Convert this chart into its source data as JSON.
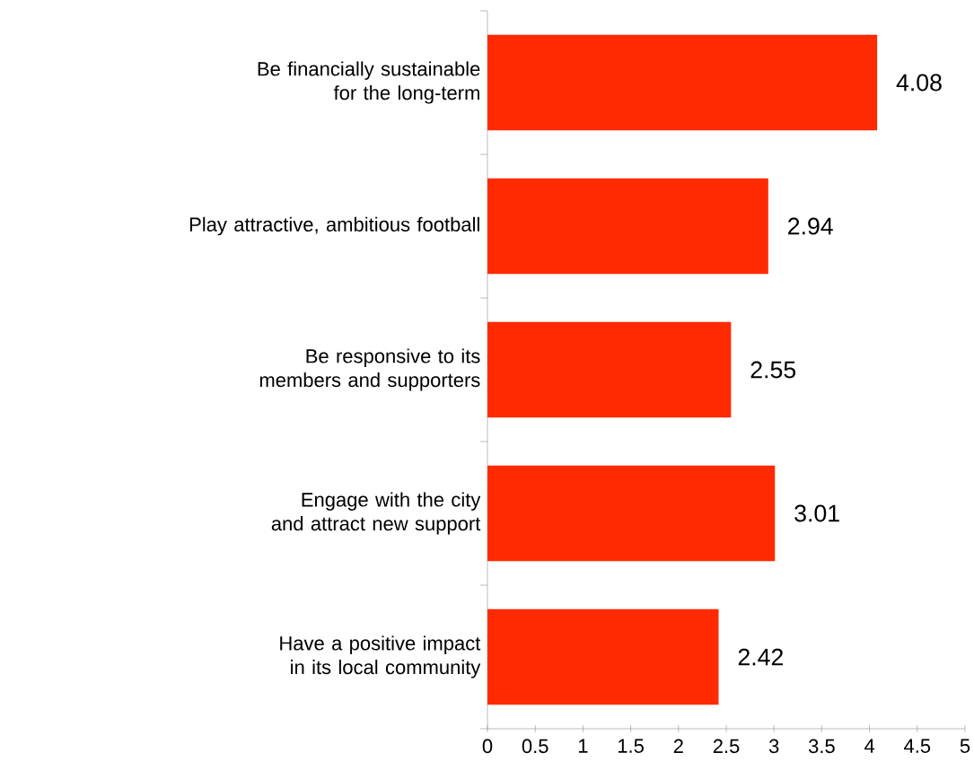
{
  "chart_data": {
    "type": "bar",
    "orientation": "horizontal",
    "categories": [
      "Be financially sustainable for the long-term",
      "Play attractive, ambitious football",
      "Be responsive to its members and supporters",
      "Engage with the city and attract new support",
      "Have a positive impact in its local community"
    ],
    "values": [
      4.08,
      2.94,
      2.55,
      3.01,
      2.42
    ],
    "color": "#ff2a00",
    "xlim": [
      0,
      5
    ],
    "xticks": [
      0,
      0.5,
      1,
      1.5,
      2,
      2.5,
      3,
      3.5,
      4,
      4.5,
      5
    ],
    "data_labels": true,
    "grid": false
  }
}
